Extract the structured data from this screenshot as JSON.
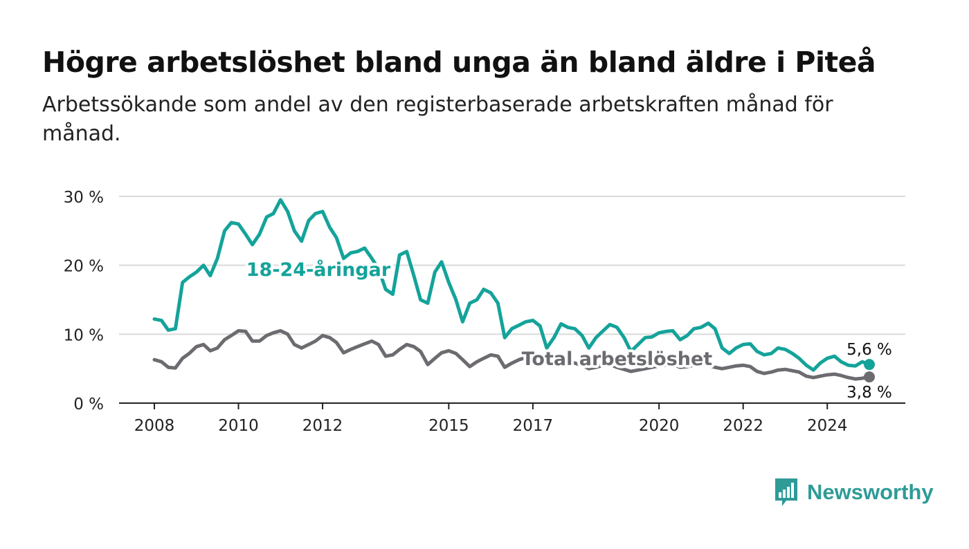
{
  "title": "Högre arbetslöshet bland unga än bland äldre i Piteå",
  "subtitle": "Arbetssökande som andel av den registerbaserade arbetskraften månad för månad.",
  "logo": {
    "text": "Newsworthy",
    "icon": "bar-chart-speech-bubble-icon",
    "color": "#2f9b97"
  },
  "chart_data": {
    "type": "line",
    "title": "Högre arbetslöshet bland unga än bland äldre i Piteå",
    "subtitle": "Arbetssökande som andel av den registerbaserade arbetskraften månad för månad.",
    "xlabel": "",
    "ylabel": "",
    "xlim": [
      2008,
      2025.5
    ],
    "ylim": [
      0,
      30
    ],
    "x_ticks": [
      2008,
      2010,
      2012,
      2015,
      2017,
      2020,
      2022,
      2024
    ],
    "x_tick_labels": [
      "2008",
      "2010",
      "2012",
      "2015",
      "2017",
      "2020",
      "2022",
      "2024"
    ],
    "y_ticks": [
      0,
      10,
      20,
      30
    ],
    "y_tick_labels": [
      "0 %",
      "10 %",
      "20 %",
      "30 %"
    ],
    "grid": true,
    "legend": "direct-labels",
    "series": [
      {
        "name": "18-24-åringar",
        "color": "#14a39a",
        "label": "18-24-åringar",
        "end_label": "5,6 %",
        "x": [
          2008.0,
          2008.17,
          2008.33,
          2008.5,
          2008.67,
          2008.83,
          2009.0,
          2009.17,
          2009.33,
          2009.5,
          2009.67,
          2009.83,
          2010.0,
          2010.17,
          2010.33,
          2010.5,
          2010.67,
          2010.83,
          2011.0,
          2011.17,
          2011.33,
          2011.5,
          2011.67,
          2011.83,
          2012.0,
          2012.17,
          2012.33,
          2012.5,
          2012.67,
          2012.83,
          2013.0,
          2013.17,
          2013.33,
          2013.5,
          2013.67,
          2013.83,
          2014.0,
          2014.17,
          2014.33,
          2014.5,
          2014.67,
          2014.83,
          2015.0,
          2015.17,
          2015.33,
          2015.5,
          2015.67,
          2015.83,
          2016.0,
          2016.17,
          2016.33,
          2016.5,
          2016.67,
          2016.83,
          2017.0,
          2017.17,
          2017.33,
          2017.5,
          2017.67,
          2017.83,
          2018.0,
          2018.17,
          2018.33,
          2018.5,
          2018.67,
          2018.83,
          2019.0,
          2019.17,
          2019.33,
          2019.5,
          2019.67,
          2019.83,
          2020.0,
          2020.17,
          2020.33,
          2020.5,
          2020.67,
          2020.83,
          2021.0,
          2021.17,
          2021.33,
          2021.5,
          2021.67,
          2021.83,
          2022.0,
          2022.17,
          2022.33,
          2022.5,
          2022.67,
          2022.83,
          2023.0,
          2023.17,
          2023.33,
          2023.5,
          2023.67,
          2023.83,
          2024.0,
          2024.17,
          2024.33,
          2024.5,
          2024.67,
          2024.83,
          2025.0
        ],
        "values": [
          12.2,
          12.0,
          10.6,
          10.8,
          17.5,
          18.3,
          19.0,
          20.0,
          18.5,
          21.0,
          25.0,
          26.2,
          26.0,
          24.5,
          23.0,
          24.5,
          27.0,
          27.5,
          29.5,
          27.8,
          25.0,
          23.5,
          26.5,
          27.5,
          27.8,
          25.5,
          24.0,
          21.0,
          21.8,
          22.0,
          22.5,
          21.0,
          19.5,
          16.5,
          15.8,
          21.5,
          22.0,
          18.5,
          15.0,
          14.5,
          19.0,
          20.5,
          17.5,
          15.0,
          11.8,
          14.5,
          15.0,
          16.5,
          16.0,
          14.5,
          9.5,
          10.8,
          11.3,
          11.8,
          12.0,
          11.2,
          8.0,
          9.5,
          11.5,
          11.0,
          10.8,
          9.8,
          8.0,
          9.5,
          10.5,
          11.4,
          11.0,
          9.5,
          7.5,
          8.5,
          9.5,
          9.6,
          10.2,
          10.4,
          10.5,
          9.2,
          9.8,
          10.8,
          11.0,
          11.6,
          10.8,
          8.0,
          7.2,
          8.0,
          8.5,
          8.6,
          7.5,
          7.0,
          7.2,
          8.0,
          7.8,
          7.2,
          6.5,
          5.5,
          4.8,
          5.8,
          6.5,
          6.8,
          6.0,
          5.5,
          5.4,
          6.0,
          5.6
        ]
      },
      {
        "name": "Total arbetslöshet",
        "color": "#6d6a70",
        "label": "Total arbetslöshet",
        "end_label": "3,8 %",
        "x": [
          2008.0,
          2008.17,
          2008.33,
          2008.5,
          2008.67,
          2008.83,
          2009.0,
          2009.17,
          2009.33,
          2009.5,
          2009.67,
          2009.83,
          2010.0,
          2010.17,
          2010.33,
          2010.5,
          2010.67,
          2010.83,
          2011.0,
          2011.17,
          2011.33,
          2011.5,
          2011.67,
          2011.83,
          2012.0,
          2012.17,
          2012.33,
          2012.5,
          2012.67,
          2012.83,
          2013.0,
          2013.17,
          2013.33,
          2013.5,
          2013.67,
          2013.83,
          2014.0,
          2014.17,
          2014.33,
          2014.5,
          2014.67,
          2014.83,
          2015.0,
          2015.17,
          2015.33,
          2015.5,
          2015.67,
          2015.83,
          2016.0,
          2016.17,
          2016.33,
          2016.5,
          2016.67,
          2016.83,
          2017.0,
          2017.17,
          2017.33,
          2017.5,
          2017.67,
          2017.83,
          2018.0,
          2018.17,
          2018.33,
          2018.5,
          2018.67,
          2018.83,
          2019.0,
          2019.17,
          2019.33,
          2019.5,
          2019.67,
          2019.83,
          2020.0,
          2020.17,
          2020.33,
          2020.5,
          2020.67,
          2020.83,
          2021.0,
          2021.17,
          2021.33,
          2021.5,
          2021.67,
          2021.83,
          2022.0,
          2022.17,
          2022.33,
          2022.5,
          2022.67,
          2022.83,
          2023.0,
          2023.17,
          2023.33,
          2023.5,
          2023.67,
          2023.83,
          2024.0,
          2024.17,
          2024.33,
          2024.5,
          2024.67,
          2024.83,
          2025.0
        ],
        "values": [
          6.3,
          6.0,
          5.2,
          5.1,
          6.5,
          7.2,
          8.2,
          8.5,
          7.6,
          8.0,
          9.2,
          9.8,
          10.5,
          10.4,
          9.0,
          9.0,
          9.8,
          10.2,
          10.5,
          10.0,
          8.5,
          8.0,
          8.5,
          9.0,
          9.8,
          9.5,
          8.8,
          7.3,
          7.8,
          8.2,
          8.6,
          9.0,
          8.5,
          6.8,
          7.0,
          7.8,
          8.5,
          8.2,
          7.5,
          5.6,
          6.5,
          7.3,
          7.6,
          7.2,
          6.3,
          5.3,
          6.0,
          6.5,
          7.0,
          6.8,
          5.2,
          5.8,
          6.3,
          6.6,
          6.8,
          6.5,
          6.0,
          5.5,
          5.8,
          6.0,
          5.8,
          5.5,
          5.0,
          5.2,
          5.5,
          5.6,
          5.2,
          4.9,
          4.6,
          4.8,
          5.0,
          5.2,
          5.4,
          5.5,
          5.6,
          5.2,
          5.3,
          5.5,
          5.6,
          5.5,
          5.2,
          5.0,
          5.2,
          5.4,
          5.5,
          5.3,
          4.6,
          4.3,
          4.5,
          4.8,
          4.9,
          4.7,
          4.5,
          3.9,
          3.7,
          3.9,
          4.1,
          4.2,
          4.0,
          3.7,
          3.5,
          3.6,
          3.8
        ]
      }
    ]
  }
}
